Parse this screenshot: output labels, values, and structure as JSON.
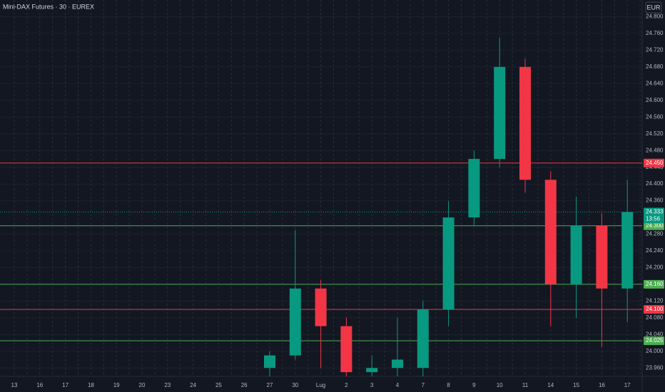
{
  "chart_data": {
    "type": "candlestick",
    "title": "Mini-DAX Futures · 30 · EUREX",
    "currency": "EUR",
    "categories": [
      "13",
      "16",
      "17",
      "18",
      "19",
      "20",
      "23",
      "24",
      "25",
      "26",
      "27",
      "30",
      "Lug",
      "2",
      "3",
      "4",
      "7",
      "8",
      "9",
      "10",
      "11",
      "14",
      "15",
      "16",
      "17"
    ],
    "open": [
      null,
      null,
      null,
      null,
      null,
      null,
      null,
      null,
      null,
      null,
      23960,
      23990,
      24150,
      24060,
      23950,
      23960,
      23960,
      24100,
      24320,
      24460,
      24680,
      24410,
      24160,
      24300,
      24150
    ],
    "high": [
      null,
      null,
      null,
      null,
      null,
      null,
      null,
      null,
      null,
      null,
      24000,
      24290,
      24170,
      24080,
      23990,
      24080,
      24120,
      24360,
      24480,
      24750,
      24700,
      24430,
      24370,
      24330,
      24410
    ],
    "low": [
      null,
      null,
      null,
      null,
      null,
      null,
      null,
      null,
      null,
      null,
      23940,
      23980,
      23960,
      23940,
      23940,
      23940,
      23940,
      24060,
      24300,
      24440,
      24380,
      24060,
      24080,
      24010,
      24070
    ],
    "close": [
      null,
      null,
      null,
      null,
      null,
      null,
      null,
      null,
      null,
      null,
      23990,
      24150,
      24060,
      23950,
      23960,
      23980,
      24100,
      24320,
      24460,
      24680,
      24410,
      24160,
      24300,
      24150,
      24333
    ],
    "up_color": "#089981",
    "down_color": "#f23645",
    "ylim": [
      23940,
      24840
    ],
    "yticks": [
      {
        "value": 24800,
        "label": "24.800"
      },
      {
        "value": 24760,
        "label": "24.760"
      },
      {
        "value": 24720,
        "label": "24.720"
      },
      {
        "value": 24680,
        "label": "24.680"
      },
      {
        "value": 24640,
        "label": "24.640"
      },
      {
        "value": 24600,
        "label": "24.600"
      },
      {
        "value": 24560,
        "label": "24.560"
      },
      {
        "value": 24520,
        "label": "24.520"
      },
      {
        "value": 24480,
        "label": "24.480"
      },
      {
        "value": 24440,
        "label": "24.440"
      },
      {
        "value": 24400,
        "label": "24.400"
      },
      {
        "value": 24360,
        "label": "24.360"
      },
      {
        "value": 24280,
        "label": "24.280"
      },
      {
        "value": 24240,
        "label": "24.240"
      },
      {
        "value": 24200,
        "label": "24.200"
      },
      {
        "value": 24120,
        "label": "24.120"
      },
      {
        "value": 24080,
        "label": "24.080"
      },
      {
        "value": 24040,
        "label": "24.040"
      },
      {
        "value": 24000,
        "label": "24.000"
      },
      {
        "value": 23960,
        "label": "23.960"
      }
    ],
    "grid": true,
    "levels": [
      {
        "value": 24450,
        "label": "24.450",
        "color": "#f23645"
      },
      {
        "value": 24300,
        "label": "24.300",
        "color": "#4caf50"
      },
      {
        "value": 24160,
        "label": "24.160",
        "color": "#4caf50"
      },
      {
        "value": 24100,
        "label": "24.100",
        "color": "#f23645"
      },
      {
        "value": 24025,
        "label": "24.025",
        "color": "#4caf50"
      }
    ],
    "last_price": {
      "value": 24333,
      "label": "24.333"
    },
    "countdown": "13:56"
  }
}
